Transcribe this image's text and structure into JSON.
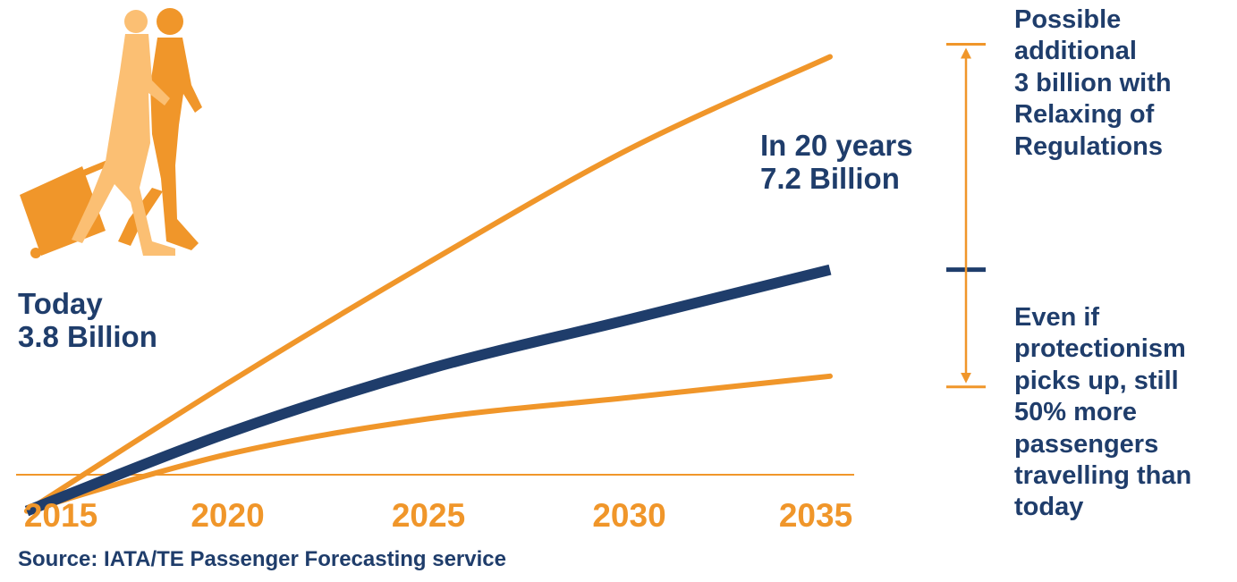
{
  "colors": {
    "navy": "#1f3d6b",
    "orange": "#f0962a",
    "light_orange": "#fbbf73"
  },
  "icons": [
    "travellers-silhouette-icon"
  ],
  "annotations": {
    "today": [
      "Today",
      "3.8 Billion"
    ],
    "in_20_years": [
      "In 20 years",
      "7.2 Billion"
    ],
    "upside": [
      "Possible",
      "additional",
      "3 billion with",
      "Relaxing of",
      "Regulations"
    ],
    "downside": [
      "Even if",
      "protectionism",
      "picks up, still",
      "50% more",
      "passengers",
      "travelling than",
      "today"
    ]
  },
  "source": "Source: IATA/TE Passenger Forecasting service",
  "chart_data": {
    "type": "line",
    "xlabel": "",
    "ylabel": "",
    "x": [
      2015,
      2020,
      2025,
      2030,
      2035
    ],
    "xticks": [
      "2015",
      "2020",
      "2025",
      "2030",
      "2035"
    ],
    "xlim": [
      2015,
      2035
    ],
    "ylim": [
      2.8,
      11.0
    ],
    "grid": false,
    "series": [
      {
        "role": "upper",
        "color": "#f0962a",
        "values": [
          3.8,
          5.6,
          7.3,
          8.9,
          10.2
        ]
      },
      {
        "role": "base",
        "color": "#1f3d6b",
        "values": [
          3.8,
          4.9,
          5.8,
          6.5,
          7.2
        ]
      },
      {
        "role": "lower",
        "color": "#f0962a",
        "values": [
          3.8,
          4.6,
          5.1,
          5.4,
          5.7
        ]
      }
    ],
    "range_bracket": {
      "x": 2035,
      "top": 10.2,
      "mid": 7.2,
      "bottom": 5.7
    }
  }
}
